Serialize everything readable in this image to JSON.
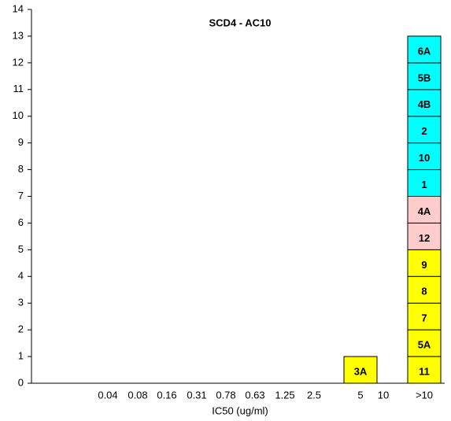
{
  "chart_data": {
    "type": "stacked_box",
    "title": "SCD4 - AC10",
    "x_label": "IC50 (ug/ml)",
    "categories": [
      "0.04",
      "0.08",
      "0.16",
      "0.31",
      "0.78",
      "0.63",
      "1.25",
      "2.5",
      "5",
      "10",
      ">10"
    ],
    "ylim": [
      0,
      14
    ],
    "yticks": [
      0,
      1,
      2,
      3,
      4,
      5,
      6,
      7,
      8,
      9,
      10,
      11,
      12,
      13,
      14
    ],
    "series": [
      {
        "name": "3A",
        "color": "#ffff00",
        "values": [
          null,
          null,
          null,
          null,
          null,
          null,
          null,
          null,
          1,
          null,
          null
        ]
      },
      {
        "name": "11",
        "color": "#ffff00",
        "values": [
          null,
          null,
          null,
          null,
          null,
          null,
          null,
          null,
          null,
          null,
          1
        ]
      },
      {
        "name": "5A",
        "color": "#ffff00",
        "values": [
          null,
          null,
          null,
          null,
          null,
          null,
          null,
          null,
          null,
          null,
          1
        ]
      },
      {
        "name": "7",
        "color": "#ffff00",
        "values": [
          null,
          null,
          null,
          null,
          null,
          null,
          null,
          null,
          null,
          null,
          1
        ]
      },
      {
        "name": "8",
        "color": "#ffff00",
        "values": [
          null,
          null,
          null,
          null,
          null,
          null,
          null,
          null,
          null,
          null,
          1
        ]
      },
      {
        "name": "9",
        "color": "#ffff00",
        "values": [
          null,
          null,
          null,
          null,
          null,
          null,
          null,
          null,
          null,
          null,
          1
        ]
      },
      {
        "name": "12",
        "color": "#ffcccc",
        "values": [
          null,
          null,
          null,
          null,
          null,
          null,
          null,
          null,
          null,
          null,
          1
        ]
      },
      {
        "name": "4A",
        "color": "#ffcccc",
        "values": [
          null,
          null,
          null,
          null,
          null,
          null,
          null,
          null,
          null,
          null,
          1
        ]
      },
      {
        "name": "1",
        "color": "#00ffff",
        "values": [
          null,
          null,
          null,
          null,
          null,
          null,
          null,
          null,
          null,
          null,
          1
        ]
      },
      {
        "name": "10",
        "color": "#00ffff",
        "values": [
          null,
          null,
          null,
          null,
          null,
          null,
          null,
          null,
          null,
          null,
          1
        ]
      },
      {
        "name": "2",
        "color": "#00ffff",
        "values": [
          null,
          null,
          null,
          null,
          null,
          null,
          null,
          null,
          null,
          null,
          1
        ]
      },
      {
        "name": "4B",
        "color": "#00ffff",
        "values": [
          null,
          null,
          null,
          null,
          null,
          null,
          null,
          null,
          null,
          null,
          1
        ]
      },
      {
        "name": "5B",
        "color": "#00ffff",
        "values": [
          null,
          null,
          null,
          null,
          null,
          null,
          null,
          null,
          null,
          null,
          1
        ]
      },
      {
        "name": "6A",
        "color": "#00ffff",
        "values": [
          null,
          null,
          null,
          null,
          null,
          null,
          null,
          null,
          null,
          null,
          1
        ]
      }
    ]
  }
}
